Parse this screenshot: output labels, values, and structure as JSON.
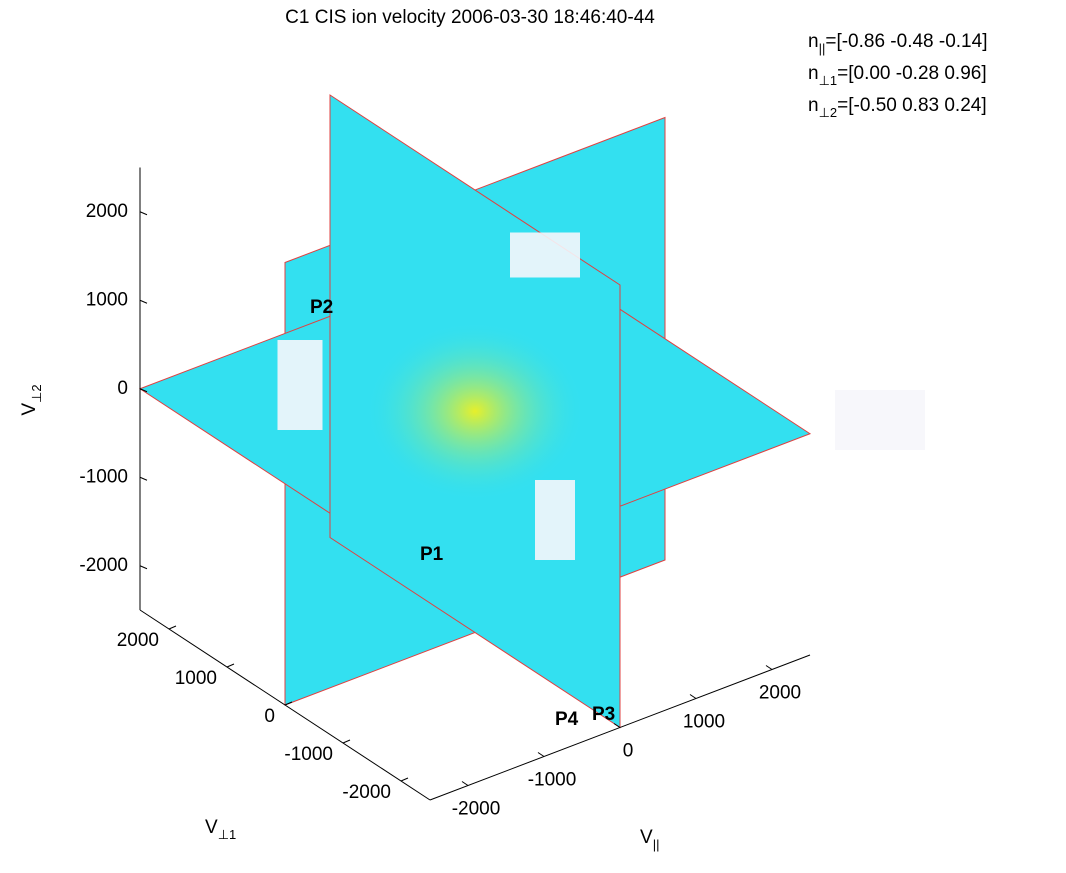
{
  "chart_data": {
    "type": "slice3d",
    "title": "C1 CIS ion velocity 2006-03-30 18:46:40-44",
    "normals": [
      {
        "symbol": "n",
        "subscript": "||",
        "text": "=[-0.86 -0.48 -0.14]"
      },
      {
        "symbol": "n",
        "subscript": "⊥1",
        "text": "=[0.00 -0.28 0.96]"
      },
      {
        "symbol": "n",
        "subscript": "⊥2",
        "text": "=[-0.50 0.83 0.24]"
      }
    ],
    "xlabel": {
      "symbol": "V",
      "subscript": "||"
    },
    "ylabel": {
      "symbol": "V",
      "subscript": "⊥1"
    },
    "zlabel": {
      "symbol": "V",
      "subscript": "⊥2"
    },
    "xlim": [
      -2500,
      2500
    ],
    "ylim": [
      -2500,
      2500
    ],
    "zlim": [
      -2500,
      2500
    ],
    "xticks": [
      -2000,
      -1000,
      0,
      1000,
      2000
    ],
    "yticks": [
      -2000,
      -1000,
      0,
      1000,
      2000
    ],
    "zticks": [
      -2000,
      -1000,
      0,
      1000,
      2000
    ],
    "points": [
      "P1",
      "P2",
      "P3",
      "P4"
    ],
    "plane_color": "#33e0f0",
    "core_color": "#f0f020"
  }
}
